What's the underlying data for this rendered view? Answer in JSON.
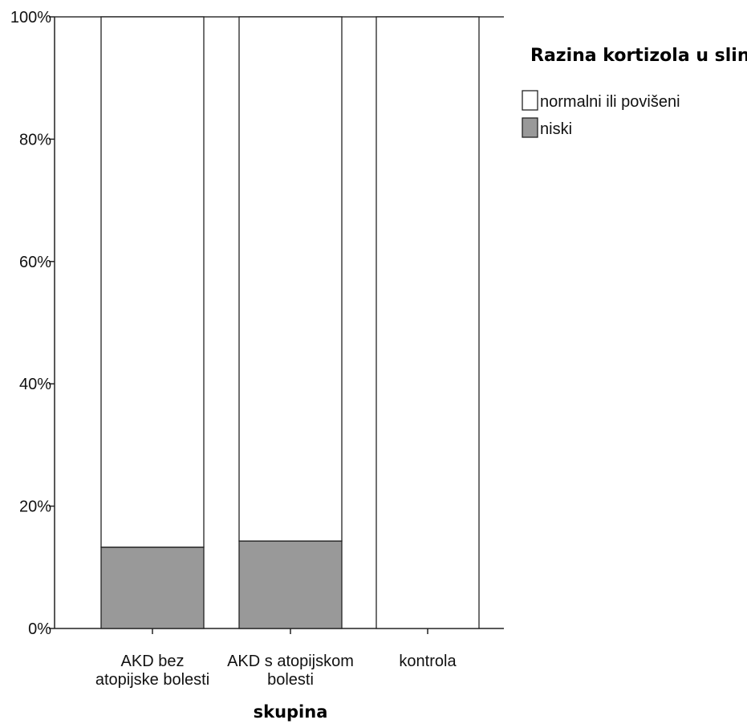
{
  "chart_data": {
    "type": "bar",
    "stacked": true,
    "percent_stacked": true,
    "categories": [
      [
        "AKD bez",
        "atopijske bolesti"
      ],
      [
        "AKD s atopijskom",
        "bolesti"
      ],
      [
        "kontrola"
      ]
    ],
    "series": [
      {
        "name": "niski",
        "values": [
          13.3,
          14.3,
          0.0
        ],
        "color": "#999999"
      },
      {
        "name": "normalni ili povišeni",
        "values": [
          86.7,
          85.7,
          100.0
        ],
        "color": "#ffffff"
      }
    ],
    "xlabel": "skupina",
    "ylabel": "",
    "ylim": [
      0,
      100
    ],
    "yticks": [
      "0%",
      "20%",
      "40%",
      "60%",
      "80%",
      "100%"
    ],
    "grid": false,
    "legend": {
      "title": "Razina kortizola u slini",
      "position": "top-right",
      "items": [
        {
          "label": "normalni ili povišeni",
          "color": "#ffffff"
        },
        {
          "label": "niski",
          "color": "#999999"
        }
      ]
    }
  }
}
